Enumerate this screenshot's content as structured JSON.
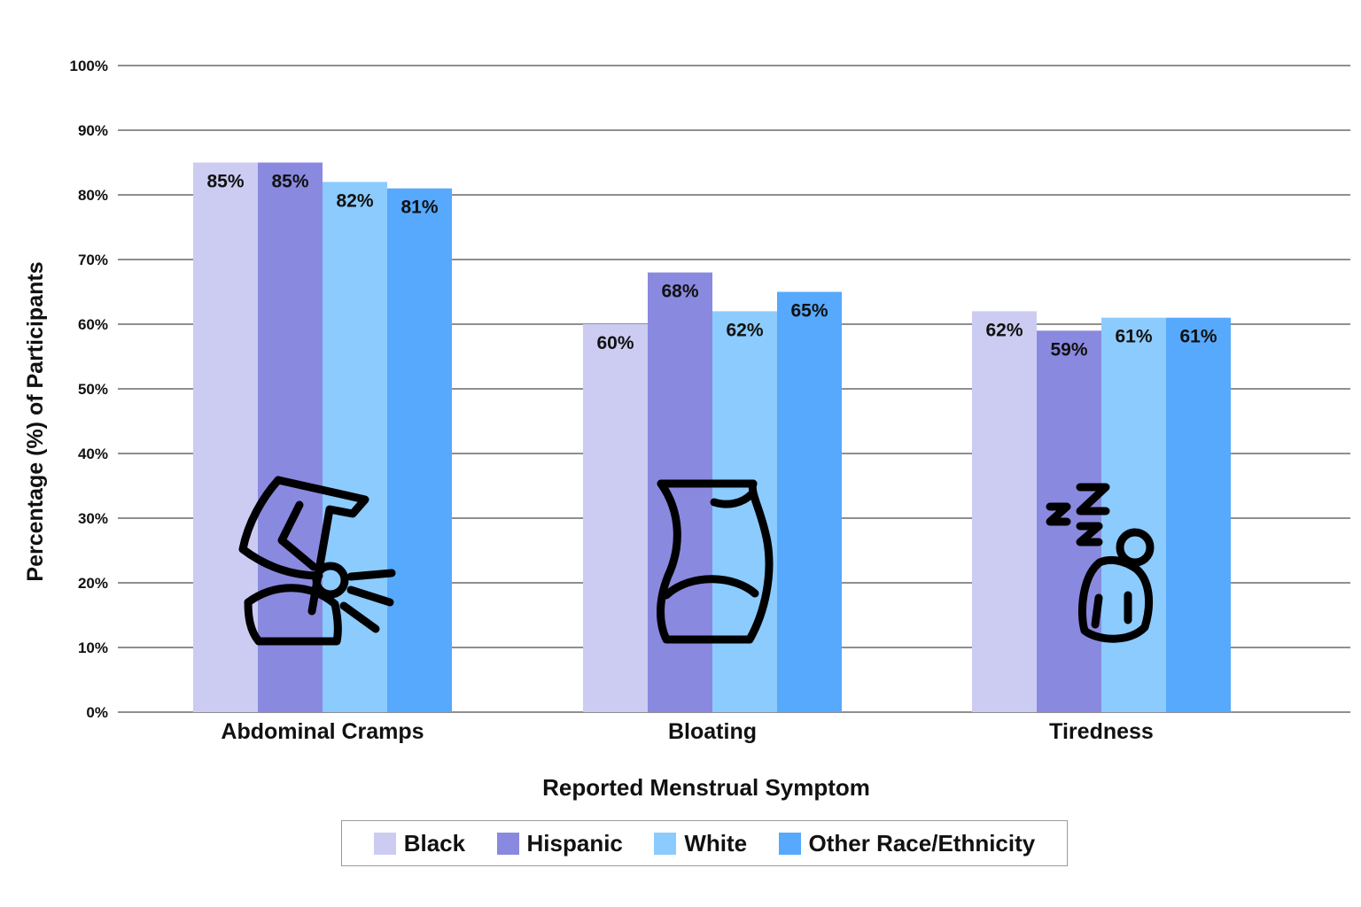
{
  "chart_data": {
    "type": "bar",
    "title": "",
    "xlabel": "Reported Menstrual Symptom",
    "ylabel": "Percentage (%) of Participants",
    "ylim": [
      0,
      100
    ],
    "yticks": [
      "0%",
      "10%",
      "20%",
      "30%",
      "40%",
      "50%",
      "60%",
      "70%",
      "80%",
      "90%",
      "100%"
    ],
    "grid": true,
    "legend_position": "bottom",
    "categories": [
      "Abdominal Cramps",
      "Bloating",
      "Tiredness"
    ],
    "category_icons": [
      "abdominal-cramps-icon",
      "bloating-icon",
      "tiredness-icon"
    ],
    "series": [
      {
        "name": "Black",
        "color": "#ccccf2",
        "values": [
          85,
          60,
          62
        ],
        "labels": [
          "85%",
          "60%",
          "62%"
        ]
      },
      {
        "name": "Hispanic",
        "color": "#8a89e0",
        "values": [
          85,
          68,
          59
        ],
        "labels": [
          "85%",
          "68%",
          "59%"
        ]
      },
      {
        "name": "White",
        "color": "#8ccbfd",
        "values": [
          82,
          62,
          61
        ],
        "labels": [
          "82%",
          "62%",
          "61%"
        ]
      },
      {
        "name": "Other Race/Ethnicity",
        "color": "#57a9fd",
        "values": [
          81,
          65,
          61
        ],
        "labels": [
          "81%",
          "65%",
          "61%"
        ]
      }
    ]
  }
}
